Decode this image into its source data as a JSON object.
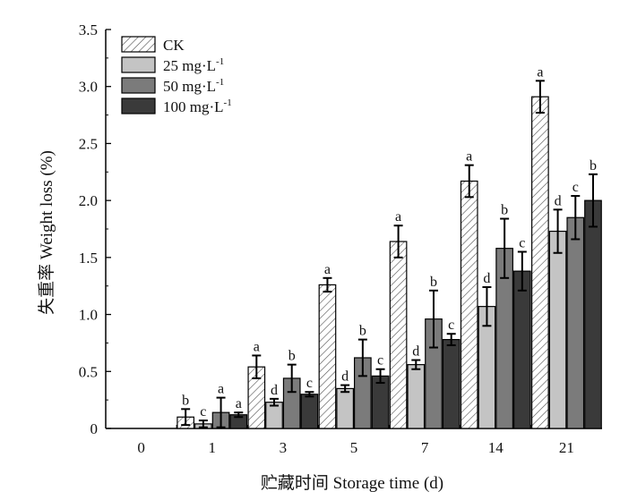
{
  "chart_data": {
    "type": "bar",
    "title": "",
    "xlabel": "贮藏时间 Storage time (d)",
    "ylabel": "失重率 Weight loss (%)",
    "categories": [
      "0",
      "1",
      "3",
      "5",
      "7",
      "14",
      "21"
    ],
    "ylim": [
      0,
      3.5
    ],
    "yticks": [
      "0",
      "0.5",
      "1.0",
      "1.5",
      "2.0",
      "2.5",
      "3.0",
      "3.5"
    ],
    "legend_position": "top-left",
    "series": [
      {
        "name": "CK",
        "fill": "hatch",
        "color": "#ffffff",
        "values": [
          0,
          0.1,
          0.54,
          1.26,
          1.64,
          2.17,
          2.91
        ],
        "errors": [
          0,
          0.07,
          0.1,
          0.06,
          0.14,
          0.14,
          0.14
        ],
        "letters": [
          "",
          "b",
          "a",
          "a",
          "a",
          "a",
          "a"
        ]
      },
      {
        "name": "25 mg·L",
        "name_sup": "-1",
        "fill": "solid",
        "color": "#c4c4c4",
        "values": [
          0,
          0.04,
          0.23,
          0.35,
          0.56,
          1.07,
          1.73
        ],
        "errors": [
          0,
          0.03,
          0.03,
          0.03,
          0.04,
          0.17,
          0.19
        ],
        "letters": [
          "",
          "c",
          "d",
          "d",
          "d",
          "d",
          "d"
        ]
      },
      {
        "name": "50 mg·L",
        "name_sup": "-1",
        "fill": "solid",
        "color": "#7b7b7b",
        "values": [
          0,
          0.14,
          0.44,
          0.62,
          0.96,
          1.58,
          1.85
        ],
        "errors": [
          0,
          0.13,
          0.12,
          0.16,
          0.25,
          0.26,
          0.19
        ],
        "letters": [
          "",
          "a",
          "b",
          "b",
          "b",
          "b",
          "c"
        ]
      },
      {
        "name": "100 mg·L",
        "name_sup": "-1",
        "fill": "solid",
        "color": "#3a3a3a",
        "values": [
          0,
          0.12,
          0.3,
          0.46,
          0.78,
          1.38,
          2.0
        ],
        "errors": [
          0,
          0.02,
          0.02,
          0.06,
          0.05,
          0.17,
          0.23
        ],
        "letters": [
          "",
          "a",
          "c",
          "c",
          "c",
          "c",
          "b"
        ]
      }
    ]
  }
}
